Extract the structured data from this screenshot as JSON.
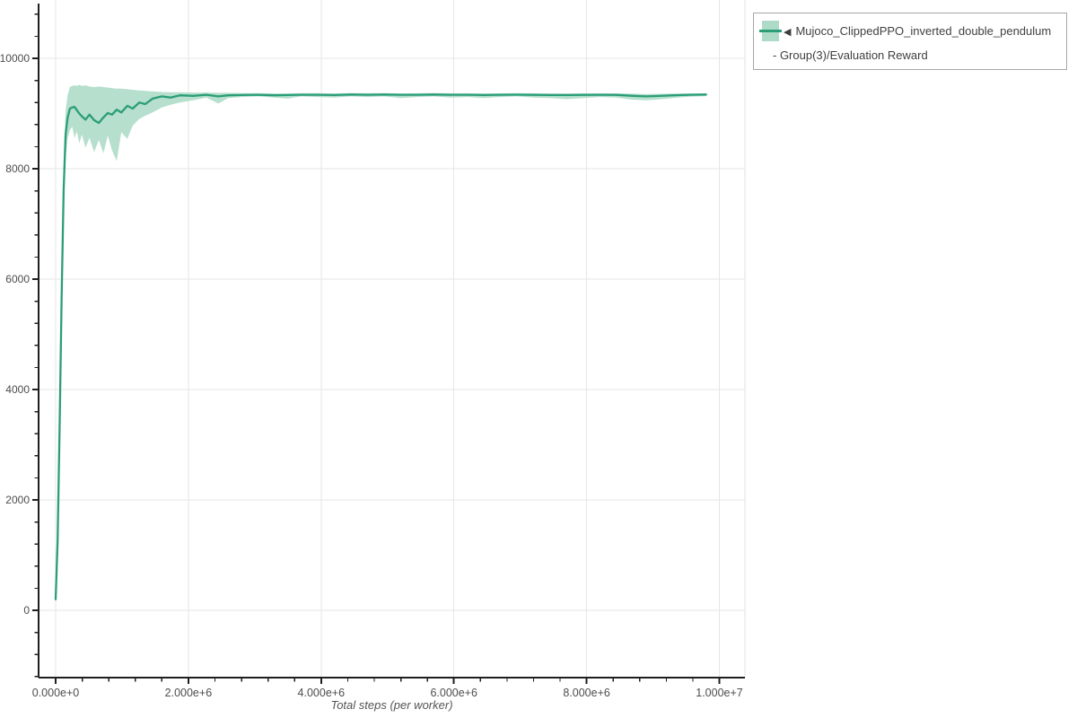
{
  "chart_data": {
    "type": "line",
    "title": "",
    "xlabel": "Total steps (per worker)",
    "ylabel": "",
    "xlim": [
      -257000,
      10385000
    ],
    "ylim": [
      -1220,
      11057
    ],
    "grid": true,
    "legend_position": "outside-top-right",
    "x_ticks": [
      {
        "value": 0,
        "label": "0.000e+0"
      },
      {
        "value": 2000000,
        "label": "2.000e+6"
      },
      {
        "value": 4000000,
        "label": "4.000e+6"
      },
      {
        "value": 6000000,
        "label": "6.000e+6"
      },
      {
        "value": 8000000,
        "label": "8.000e+6"
      },
      {
        "value": 10000000,
        "label": "1.000e+7"
      }
    ],
    "y_ticks": [
      {
        "value": 0,
        "label": "0"
      },
      {
        "value": 2000,
        "label": "2000"
      },
      {
        "value": 4000,
        "label": "4000"
      },
      {
        "value": 6000,
        "label": "6000"
      },
      {
        "value": 8000,
        "label": "8000"
      },
      {
        "value": 10000,
        "label": "10000"
      }
    ],
    "x_minor_tick_step": 400000,
    "y_minor_tick_step": 400,
    "series": [
      {
        "name": "Mujoco_ClippedPPO_inverted_double_pendulum - Group(3)/Evaluation Reward",
        "style": "line-with-band",
        "line_color": "#2b9e77",
        "band_color": "#aedbc8",
        "points_format": [
          "x",
          "band_low",
          "mean",
          "band_high"
        ],
        "points": [
          [
            0,
            120,
            200,
            300
          ],
          [
            30000,
            950,
            1250,
            1650
          ],
          [
            60000,
            2900,
            3300,
            3800
          ],
          [
            90000,
            5200,
            5700,
            6250
          ],
          [
            120000,
            7100,
            7600,
            8200
          ],
          [
            150000,
            8200,
            8620,
            9050
          ],
          [
            180000,
            8550,
            8920,
            9330
          ],
          [
            215000,
            8700,
            9090,
            9480
          ],
          [
            250000,
            8760,
            9110,
            9500
          ],
          [
            285000,
            8560,
            9120,
            9510
          ],
          [
            320000,
            8680,
            9060,
            9500
          ],
          [
            355000,
            8460,
            9000,
            9520
          ],
          [
            395000,
            8620,
            8950,
            9500
          ],
          [
            450000,
            8380,
            8890,
            9510
          ],
          [
            510000,
            8560,
            8980,
            9490
          ],
          [
            580000,
            8300,
            8880,
            9480
          ],
          [
            650000,
            8520,
            8830,
            9490
          ],
          [
            720000,
            8280,
            8930,
            9480
          ],
          [
            785000,
            8600,
            9010,
            9470
          ],
          [
            850000,
            8330,
            8980,
            9460
          ],
          [
            920000,
            8140,
            9070,
            9450
          ],
          [
            990000,
            8660,
            9020,
            9450
          ],
          [
            1080000,
            8540,
            9140,
            9440
          ],
          [
            1160000,
            8780,
            9090,
            9430
          ],
          [
            1260000,
            8900,
            9200,
            9420
          ],
          [
            1350000,
            8960,
            9170,
            9410
          ],
          [
            1460000,
            9020,
            9270,
            9400
          ],
          [
            1600000,
            9110,
            9310,
            9390
          ],
          [
            1730000,
            9160,
            9290,
            9385
          ],
          [
            1870000,
            9200,
            9330,
            9385
          ],
          [
            2070000,
            9240,
            9320,
            9380
          ],
          [
            2270000,
            9290,
            9340,
            9380
          ],
          [
            2450000,
            9180,
            9310,
            9375
          ],
          [
            2600000,
            9280,
            9330,
            9375
          ],
          [
            2800000,
            9300,
            9335,
            9370
          ],
          [
            3050000,
            9310,
            9340,
            9370
          ],
          [
            3300000,
            9290,
            9330,
            9365
          ],
          [
            3500000,
            9270,
            9335,
            9365
          ],
          [
            3700000,
            9310,
            9340,
            9370
          ],
          [
            3950000,
            9300,
            9340,
            9370
          ],
          [
            4200000,
            9290,
            9335,
            9365
          ],
          [
            4450000,
            9310,
            9345,
            9370
          ],
          [
            4700000,
            9300,
            9340,
            9370
          ],
          [
            4950000,
            9310,
            9345,
            9370
          ],
          [
            5200000,
            9280,
            9340,
            9365
          ],
          [
            5450000,
            9300,
            9340,
            9368
          ],
          [
            5700000,
            9310,
            9345,
            9370
          ],
          [
            5950000,
            9290,
            9340,
            9368
          ],
          [
            6200000,
            9300,
            9340,
            9368
          ],
          [
            6450000,
            9280,
            9335,
            9365
          ],
          [
            6700000,
            9300,
            9340,
            9368
          ],
          [
            6950000,
            9310,
            9342,
            9370
          ],
          [
            7200000,
            9290,
            9338,
            9366
          ],
          [
            7450000,
            9280,
            9335,
            9365
          ],
          [
            7700000,
            9260,
            9335,
            9362
          ],
          [
            7950000,
            9280,
            9338,
            9365
          ],
          [
            8200000,
            9300,
            9340,
            9366
          ],
          [
            8450000,
            9290,
            9338,
            9364
          ],
          [
            8700000,
            9250,
            9320,
            9360
          ],
          [
            8900000,
            9240,
            9310,
            9355
          ],
          [
            9100000,
            9255,
            9318,
            9358
          ],
          [
            9300000,
            9280,
            9330,
            9360
          ],
          [
            9550000,
            9305,
            9340,
            9364
          ],
          [
            9800000,
            9315,
            9345,
            9365
          ]
        ]
      }
    ]
  },
  "legend": {
    "collapse_icon": "◀"
  },
  "colors": {
    "grid": "#e6e6e6",
    "plot_border": "#e2e2e2",
    "axis": "#1f1f1f",
    "tick_label": "#4d4d4d",
    "axis_label": "#555555",
    "legend_border": "#a6a6a6",
    "legend_text": "#404040"
  }
}
